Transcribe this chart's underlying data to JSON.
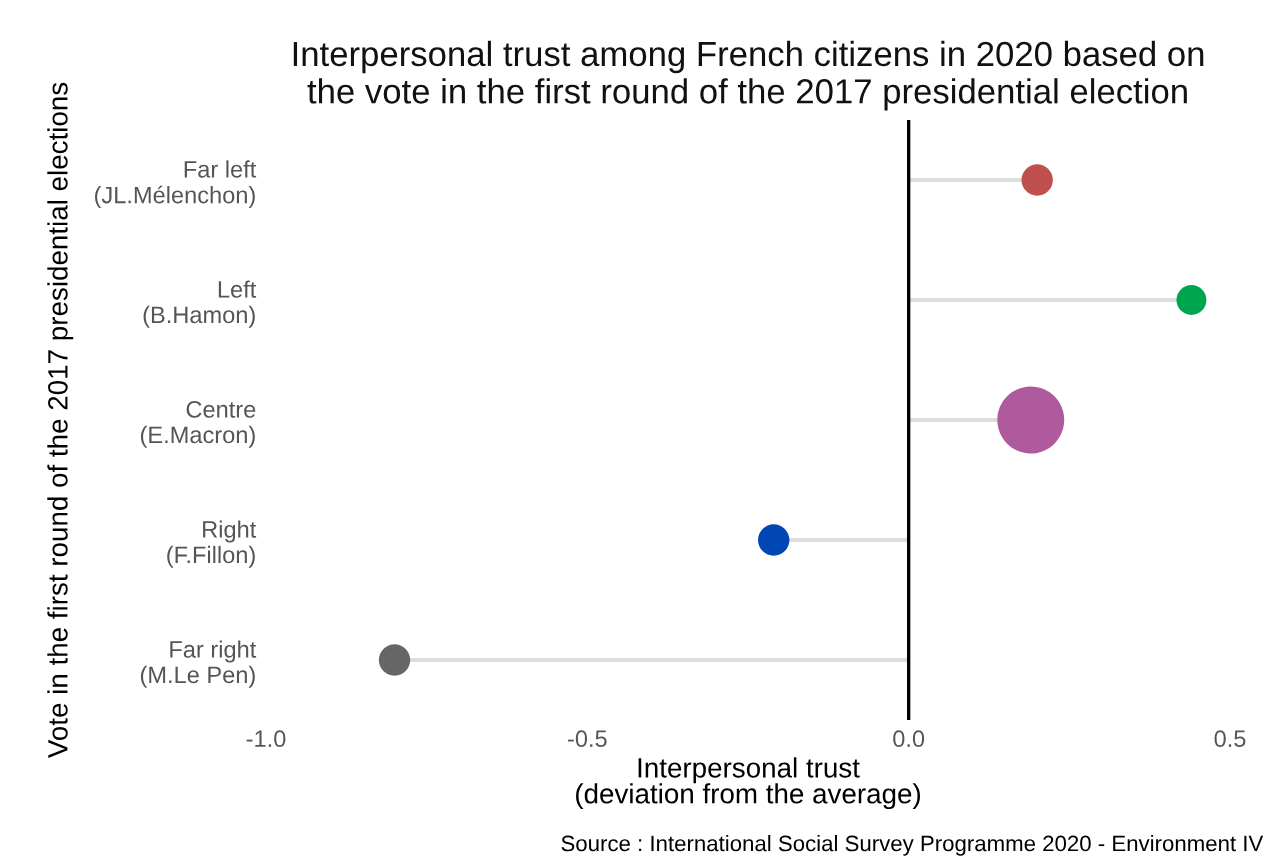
{
  "chart_data": {
    "type": "lollipop",
    "orientation": "horizontal",
    "title": "Interpersonal trust among French citizens in 2020 based on\nthe vote in the first round of the 2017 presidential election",
    "xlabel": "Interpersonal trust\n(deviation from the average)",
    "ylabel": "Vote in the first round of the 2017 presidential elections",
    "categories": [
      "Far left\n(JL.Mélenchon)",
      "Left\n(B.Hamon)",
      "Centre\n(E.Macron)",
      "Right\n(F.Fillon)",
      "Far right\n(M.Le Pen)"
    ],
    "values": [
      0.2,
      0.44,
      0.19,
      -0.21,
      -0.8
    ],
    "sizes": [
      0.22,
      0.2,
      1,
      0.22,
      0.22
    ],
    "colors": [
      "#c0504d",
      "#00a550",
      "#b05a9e",
      "#0047b3",
      "#666666"
    ],
    "xlim": [
      -1.0,
      0.5
    ],
    "xticks": [
      {
        "value": -1.0,
        "label": "-1.0"
      },
      {
        "value": -0.5,
        "label": "-0.5"
      },
      {
        "value": 0.0,
        "label": "0.0"
      },
      {
        "value": 0.5,
        "label": "0.5"
      }
    ],
    "ref_lines": [
      {
        "axis": "x",
        "value": 0,
        "color": "#000000"
      }
    ],
    "grid": false,
    "legend": false,
    "annotations": [
      "Source : International Social Survey Programme 2020 - Environment IV"
    ]
  }
}
